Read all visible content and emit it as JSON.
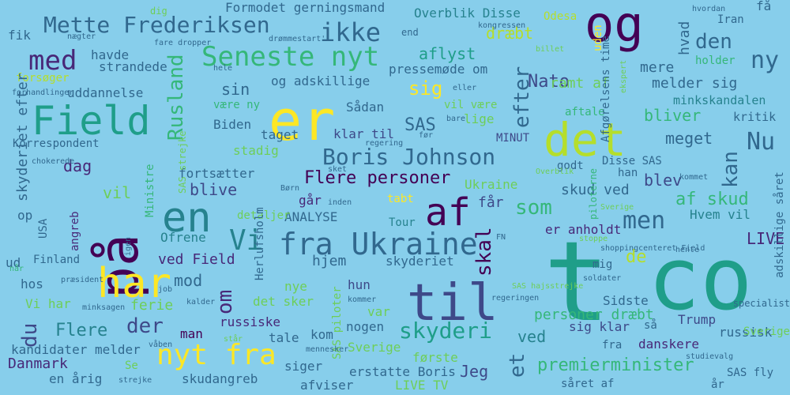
{
  "colors": {
    "background": "#87ceeb",
    "palette": [
      "#440154",
      "#482878",
      "#3e4989",
      "#31688e",
      "#26828e",
      "#1f9e89",
      "#35b779",
      "#6ece58",
      "#b5de2b",
      "#fde725"
    ]
  },
  "words": [
    {
      "text": "co",
      "color": "#1f9e89"
    },
    {
      "text": "t",
      "color": "#1f9e89"
    },
    {
      "text": "på",
      "color": "#440154"
    },
    {
      "text": "til",
      "color": "#3e4989"
    },
    {
      "text": "er",
      "color": "#fde725"
    },
    {
      "text": "og",
      "color": "#440154"
    },
    {
      "text": "det",
      "color": "#b5de2b"
    },
    {
      "text": "har",
      "color": "#fde725"
    },
    {
      "text": "en",
      "color": "#26828e"
    },
    {
      "text": "Field",
      "color": "#1f9e89"
    },
    {
      "text": "af",
      "color": "#440154"
    },
    {
      "text": "fra Ukraine",
      "color": "#31688e"
    },
    {
      "text": "nyt fra",
      "color": "#fde725"
    },
    {
      "text": "Vi",
      "color": "#26828e"
    },
    {
      "text": "Seneste nyt",
      "color": "#35b779"
    },
    {
      "text": "med",
      "color": "#482878"
    },
    {
      "text": "Mette Frederiksen",
      "color": "#31688e"
    },
    {
      "text": "Rusland",
      "color": "#35b779"
    },
    {
      "text": "ikke",
      "color": "#31688e"
    },
    {
      "text": "Boris Johnson",
      "color": "#31688e"
    },
    {
      "text": "skyderi",
      "color": "#1f9e89"
    },
    {
      "text": "ny",
      "color": "#31688e"
    },
    {
      "text": "men",
      "color": "#31688e"
    },
    {
      "text": "Nu",
      "color": "#31688e"
    },
    {
      "text": "kan",
      "color": "#31688e"
    },
    {
      "text": "skal",
      "color": "#440154"
    },
    {
      "text": "om",
      "color": "#482878"
    },
    {
      "text": "efter",
      "color": "#31688e"
    },
    {
      "text": "den",
      "color": "#31688e"
    },
    {
      "text": "som",
      "color": "#35b779"
    },
    {
      "text": "sig",
      "color": "#fde725"
    },
    {
      "text": "et",
      "color": "#31688e"
    },
    {
      "text": "der",
      "color": "#3e4989"
    },
    {
      "text": "du",
      "color": "#3e4989"
    },
    {
      "text": "Flere",
      "color": "#26828e"
    },
    {
      "text": "Flere personer",
      "color": "#440154"
    },
    {
      "text": "premierminister",
      "color": "#35b779"
    },
    {
      "text": "af skud",
      "color": "#35b779"
    },
    {
      "text": "blive",
      "color": "#3e4989"
    },
    {
      "text": "dag",
      "color": "#482878"
    },
    {
      "text": "SAS",
      "color": "#31688e"
    },
    {
      "text": "Nato",
      "color": "#3e4989"
    },
    {
      "text": "dræbt",
      "color": "#b5de2b"
    },
    {
      "text": "meget",
      "color": "#31688e"
    },
    {
      "text": "bliver",
      "color": "#35b779"
    },
    {
      "text": "blev",
      "color": "#3e4989"
    },
    {
      "text": "de",
      "color": "#b5de2b"
    },
    {
      "text": "vil",
      "color": "#6ece58"
    },
    {
      "text": "mod",
      "color": "#31688e"
    },
    {
      "text": "sin",
      "color": "#31688e"
    },
    {
      "text": "aflyst",
      "color": "#1f9e89"
    },
    {
      "text": "Jeg",
      "color": "#3e4989"
    },
    {
      "text": "LIVE",
      "color": "#482878"
    },
    {
      "text": "ved",
      "color": "#26828e"
    },
    {
      "text": "Danmark",
      "color": "#482878"
    },
    {
      "text": "Formodet gerningsmand",
      "color": "#31688e"
    },
    {
      "text": "Overblik Disse",
      "color": "#26828e"
    },
    {
      "text": "ramt af",
      "color": "#6ece58"
    },
    {
      "text": "mere",
      "color": "#31688e"
    },
    {
      "text": "hvad",
      "color": "#31688e"
    },
    {
      "text": "melder sig",
      "color": "#31688e"
    },
    {
      "text": "minkskandalen",
      "color": "#26828e"
    },
    {
      "text": "kritik",
      "color": "#31688e"
    },
    {
      "text": "personer dræbt",
      "color": "#35b779"
    },
    {
      "text": "skud ved",
      "color": "#31688e"
    },
    {
      "text": "Ukraine",
      "color": "#6ece58"
    },
    {
      "text": "får",
      "color": "#3e4989"
    },
    {
      "text": "er anholdt",
      "color": "#482878"
    },
    {
      "text": "Hvem vil",
      "color": "#26828e"
    },
    {
      "text": "Sidste",
      "color": "#31688e"
    },
    {
      "text": "Trump",
      "color": "#3e4989"
    },
    {
      "text": "russisk",
      "color": "#31688e"
    },
    {
      "text": "danskere",
      "color": "#482878"
    },
    {
      "text": "sig klar",
      "color": "#3e4989"
    },
    {
      "text": "skyderiet",
      "color": "#31688e"
    },
    {
      "text": "ved Field",
      "color": "#482878"
    },
    {
      "text": "hjem",
      "color": "#31688e"
    },
    {
      "text": "russiske",
      "color": "#482878"
    },
    {
      "text": "man",
      "color": "#440154"
    },
    {
      "text": "ferie",
      "color": "#6ece58"
    },
    {
      "text": "Ofrene",
      "color": "#26828e"
    },
    {
      "text": "ANALYSE",
      "color": "#31688e"
    },
    {
      "text": "går",
      "color": "#482878"
    },
    {
      "text": "fortsætter",
      "color": "#31688e"
    },
    {
      "text": "stadig",
      "color": "#6ece58"
    },
    {
      "text": "Biden",
      "color": "#31688e"
    },
    {
      "text": "taget",
      "color": "#31688e"
    },
    {
      "text": "klar til",
      "color": "#3e4989"
    },
    {
      "text": "Sådan",
      "color": "#31688e"
    },
    {
      "text": "lige",
      "color": "#6ece58"
    },
    {
      "text": "pressemøde om",
      "color": "#31688e"
    },
    {
      "text": "og adskillige",
      "color": "#31688e"
    },
    {
      "text": "uddannelse",
      "color": "#31688e"
    },
    {
      "text": "havde",
      "color": "#31688e"
    },
    {
      "text": "strandede",
      "color": "#31688e"
    },
    {
      "text": "forsøger",
      "color": "#b5de2b"
    },
    {
      "text": "fik",
      "color": "#31688e"
    },
    {
      "text": "Korrespondent",
      "color": "#31688e"
    },
    {
      "text": "skyderiet efter",
      "color": "#31688e"
    },
    {
      "text": "angreb",
      "color": "#482878"
    },
    {
      "text": "op",
      "color": "#31688e"
    },
    {
      "text": "ud",
      "color": "#31688e"
    },
    {
      "text": "Finland",
      "color": "#31688e"
    },
    {
      "text": "hos",
      "color": "#31688e"
    },
    {
      "text": "Vi har",
      "color": "#6ece58"
    },
    {
      "text": "kandidater melder",
      "color": "#31688e"
    },
    {
      "text": "en årig",
      "color": "#31688e"
    },
    {
      "text": "Se",
      "color": "#6ece58"
    },
    {
      "text": "skudangreb",
      "color": "#31688e"
    },
    {
      "text": "siger",
      "color": "#31688e"
    },
    {
      "text": "afviser",
      "color": "#31688e"
    },
    {
      "text": "LIVE TV",
      "color": "#6ece58"
    },
    {
      "text": "erstatte Boris",
      "color": "#31688e"
    },
    {
      "text": "første",
      "color": "#6ece58"
    },
    {
      "text": "Sverige",
      "color": "#6ece58"
    },
    {
      "text": "tale",
      "color": "#31688e"
    },
    {
      "text": "kom",
      "color": "#31688e"
    },
    {
      "text": "nogen",
      "color": "#31688e"
    },
    {
      "text": "var",
      "color": "#6ece58"
    },
    {
      "text": "hun",
      "color": "#3e4989"
    },
    {
      "text": "nye",
      "color": "#6ece58"
    },
    {
      "text": "det sker",
      "color": "#6ece58"
    },
    {
      "text": "være ny",
      "color": "#35b779"
    },
    {
      "text": "detaljer",
      "color": "#6ece58"
    },
    {
      "text": "tabt",
      "color": "#fde725"
    },
    {
      "text": "Tour",
      "color": "#26828e"
    },
    {
      "text": "MINUT",
      "color": "#3e4989"
    },
    {
      "text": "aftale",
      "color": "#35b779"
    },
    {
      "text": "Disse SAS",
      "color": "#31688e"
    },
    {
      "text": "godt",
      "color": "#31688e"
    },
    {
      "text": "han",
      "color": "#31688e"
    },
    {
      "text": "holder",
      "color": "#35b779"
    },
    {
      "text": "Iran",
      "color": "#31688e"
    },
    {
      "text": "få",
      "color": "#31688e"
    },
    {
      "text": "mig",
      "color": "#31688e"
    },
    {
      "text": "så",
      "color": "#31688e"
    },
    {
      "text": "fra",
      "color": "#31688e"
    },
    {
      "text": "år",
      "color": "#31688e"
    },
    {
      "text": "SAS fly",
      "color": "#31688e"
    },
    {
      "text": "Sverige",
      "color": "#6ece58"
    },
    {
      "text": "Odesa",
      "color": "#b5de2b"
    },
    {
      "text": "såret af",
      "color": "#31688e"
    },
    {
      "text": "adskillige såret",
      "color": "#31688e"
    },
    {
      "text": "Afgørelsens time",
      "color": "#31688e"
    },
    {
      "text": "Ministre",
      "color": "#35b779"
    },
    {
      "text": "SAS piloter",
      "color": "#6ece58"
    },
    {
      "text": "Herlufsholm",
      "color": "#31688e"
    },
    {
      "text": "USA",
      "color": "#31688e"
    },
    {
      "text": "vil være",
      "color": "#6ece58"
    },
    {
      "text": "uden",
      "color": "#fde725"
    },
    {
      "text": "end",
      "color": "#31688e"
    },
    {
      "text": "kongressen",
      "color": "#31688e"
    },
    {
      "text": "billet",
      "color": "#6ece58"
    },
    {
      "text": "ekspert",
      "color": "#6ece58"
    },
    {
      "text": "hvordan",
      "color": "#31688e"
    },
    {
      "text": "fare dropper",
      "color": "#31688e"
    },
    {
      "text": "nægter",
      "color": "#31688e"
    },
    {
      "text": "drømmestart'",
      "color": "#31688e"
    },
    {
      "text": "dig",
      "color": "#6ece58"
    },
    {
      "text": "hele",
      "color": "#31688e"
    },
    {
      "text": "forhandlinger",
      "color": "#31688e"
    },
    {
      "text": "eller",
      "color": "#31688e"
    },
    {
      "text": "bare",
      "color": "#31688e"
    },
    {
      "text": "før",
      "color": "#31688e"
    },
    {
      "text": "regering",
      "color": "#31688e"
    },
    {
      "text": "chokerede",
      "color": "#31688e"
    },
    {
      "text": "sket",
      "color": "#31688e"
    },
    {
      "text": "Overblik",
      "color": "#6ece58"
    },
    {
      "text": "kommet",
      "color": "#31688e"
    },
    {
      "text": "Børn",
      "color": "#31688e"
    },
    {
      "text": "inden",
      "color": "#31688e"
    },
    {
      "text": "SAS strejke",
      "color": "#6ece58"
    },
    {
      "text": "piloterne",
      "color": "#35b779"
    },
    {
      "text": "stoppe",
      "color": "#6ece58"
    },
    {
      "text": "shoppingcenteret Field",
      "color": "#31688e"
    },
    {
      "text": "hente",
      "color": "#31688e"
    },
    {
      "text": "soldater",
      "color": "#31688e"
    },
    {
      "text": "SAS hajsstrejke",
      "color": "#6ece58"
    },
    {
      "text": "FN",
      "color": "#31688e"
    },
    {
      "text": "når",
      "color": "#35b779"
    },
    {
      "text": "præsident",
      "color": "#31688e"
    },
    {
      "text": "job",
      "color": "#31688e"
    },
    {
      "text": "minksagen",
      "color": "#31688e"
    },
    {
      "text": "kalder",
      "color": "#31688e"
    },
    {
      "text": "igen",
      "color": "#31688e"
    },
    {
      "text": "kommer",
      "color": "#31688e"
    },
    {
      "text": "regeringen",
      "color": "#31688e"
    },
    {
      "text": "står",
      "color": "#6ece58"
    },
    {
      "text": "mennesker",
      "color": "#31688e"
    },
    {
      "text": "våben",
      "color": "#31688e"
    },
    {
      "text": "strejke",
      "color": "#31688e"
    },
    {
      "text": "studievalg",
      "color": "#31688e"
    },
    {
      "text": "specialist",
      "color": "#31688e"
    },
    {
      "text": "Sverige",
      "color": "#6ece58"
    },
    {
      "text": "sagen",
      "color": "#35b779"
    },
    {
      "text": "mest",
      "color": "#6ece58"
    },
    {
      "text": "'fået",
      "color": "#31688e"
    },
    {
      "text": "fået",
      "color": "#31688e"
    },
    {
      "text": "s",
      "color": "#31688e"
    },
    {
      "text": "Sverige",
      "color": "#6ece58"
    },
    {
      "text": "udsatte",
      "color": "#31688e"
    }
  ]
}
